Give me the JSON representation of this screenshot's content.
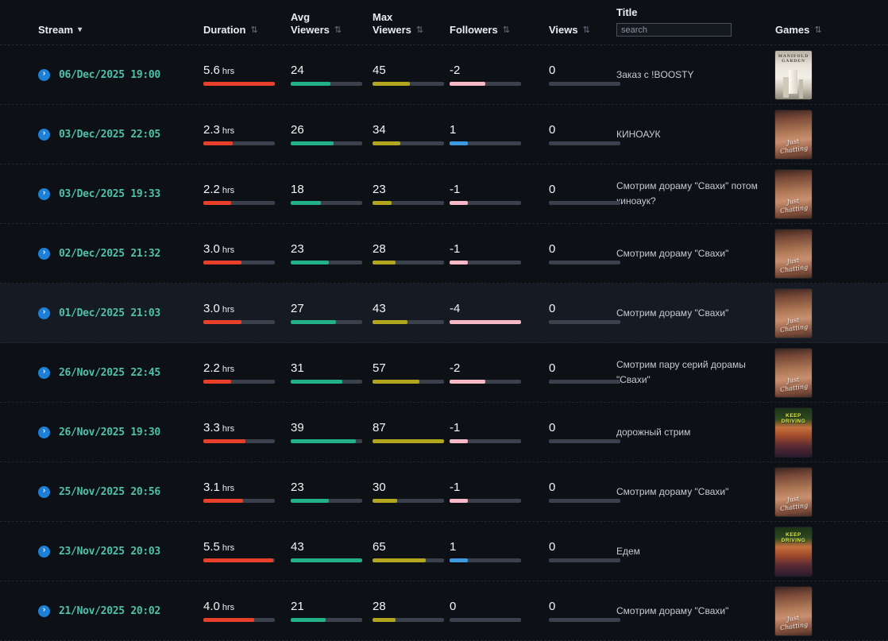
{
  "icons": {
    "sort": "⇅",
    "sorted_desc": "▾",
    "chevron_right": "›"
  },
  "colors": {
    "duration_bar": "#e8402a",
    "avg_viewers_bar": "#22b186",
    "max_viewers_bar": "#b1a61e",
    "followers_neg_bar": "#f7b9c6",
    "followers_pos_bar": "#3e9ae0",
    "views_bar": "#3a414c",
    "bar_track": "#3a414c",
    "date_text": "#4fc0aa",
    "stream_icon_bg": "#1d7fd6"
  },
  "header": {
    "stream": "Stream",
    "duration": "Duration",
    "avg_viewers": "Avg\nViewers",
    "max_viewers": "Max\nViewers",
    "followers": "Followers",
    "views": "Views",
    "title": "Title",
    "games": "Games",
    "search_placeholder": "search"
  },
  "games": {
    "manifold_garden": {
      "label": "MANIFOLD GARDEN"
    },
    "just_chatting": {
      "label": "Just Chatting"
    },
    "keep_driving": {
      "label": "KEEP DRIVING"
    }
  },
  "rows": [
    {
      "date": "06/Dec/2025 19:00",
      "duration": "5.6",
      "duration_unit": "hrs",
      "avg_viewers": "24",
      "max_viewers": "45",
      "followers": "-2",
      "views": "0",
      "title": "Заказ с !BOOSTY",
      "game": "manifold_garden",
      "highlighted": false
    },
    {
      "date": "03/Dec/2025 22:05",
      "duration": "2.3",
      "duration_unit": "hrs",
      "avg_viewers": "26",
      "max_viewers": "34",
      "followers": "1",
      "views": "0",
      "title": "КИНОАУК",
      "game": "just_chatting",
      "highlighted": false
    },
    {
      "date": "03/Dec/2025 19:33",
      "duration": "2.2",
      "duration_unit": "hrs",
      "avg_viewers": "18",
      "max_viewers": "23",
      "followers": "-1",
      "views": "0",
      "title": "Смотрим дораму \"Свахи\" потом киноаук?",
      "game": "just_chatting",
      "highlighted": false
    },
    {
      "date": "02/Dec/2025 21:32",
      "duration": "3.0",
      "duration_unit": "hrs",
      "avg_viewers": "23",
      "max_viewers": "28",
      "followers": "-1",
      "views": "0",
      "title": "Смотрим дораму \"Свахи\"",
      "game": "just_chatting",
      "highlighted": false
    },
    {
      "date": "01/Dec/2025 21:03",
      "duration": "3.0",
      "duration_unit": "hrs",
      "avg_viewers": "27",
      "max_viewers": "43",
      "followers": "-4",
      "views": "0",
      "title": "Смотрим дораму \"Свахи\"",
      "game": "just_chatting",
      "highlighted": true
    },
    {
      "date": "26/Nov/2025 22:45",
      "duration": "2.2",
      "duration_unit": "hrs",
      "avg_viewers": "31",
      "max_viewers": "57",
      "followers": "-2",
      "views": "0",
      "title": "Смотрим пару серий дорамы \"Свахи\"",
      "game": "just_chatting",
      "highlighted": false
    },
    {
      "date": "26/Nov/2025 19:30",
      "duration": "3.3",
      "duration_unit": "hrs",
      "avg_viewers": "39",
      "max_viewers": "87",
      "followers": "-1",
      "views": "0",
      "title": "дорожный стрим",
      "game": "keep_driving",
      "highlighted": false
    },
    {
      "date": "25/Nov/2025 20:56",
      "duration": "3.1",
      "duration_unit": "hrs",
      "avg_viewers": "23",
      "max_viewers": "30",
      "followers": "-1",
      "views": "0",
      "title": "Смотрим дораму \"Свахи\"",
      "game": "just_chatting",
      "highlighted": false
    },
    {
      "date": "23/Nov/2025 20:03",
      "duration": "5.5",
      "duration_unit": "hrs",
      "avg_viewers": "43",
      "max_viewers": "65",
      "followers": "1",
      "views": "0",
      "title": "Едем",
      "game": "keep_driving",
      "highlighted": false
    },
    {
      "date": "21/Nov/2025 20:02",
      "duration": "4.0",
      "duration_unit": "hrs",
      "avg_viewers": "21",
      "max_viewers": "28",
      "followers": "0",
      "views": "0",
      "title": "Смотрим дораму \"Свахи\"",
      "game": "just_chatting",
      "highlighted": false
    }
  ]
}
